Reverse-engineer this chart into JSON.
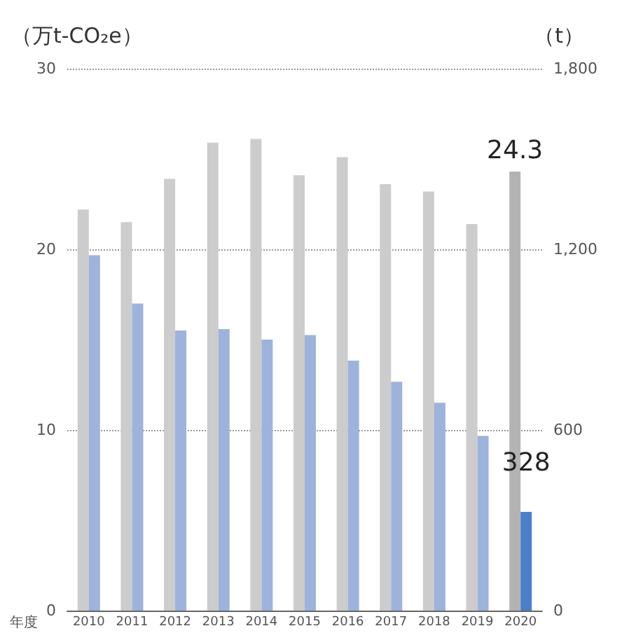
{
  "chart_data": {
    "type": "bar",
    "xlabel": "年度",
    "ylabel": "（万t-CO₂e）",
    "y2label": "（t）",
    "categories": [
      "2010",
      "2011",
      "2012",
      "2013",
      "2014",
      "2015",
      "2016",
      "2017",
      "2018",
      "2019",
      "2020"
    ],
    "series": [
      {
        "colors": [
          "#cccccc",
          "#cccccc",
          "#cccccc",
          "#cccccc",
          "#cccccc",
          "#cccccc",
          "#cccccc",
          "#cccccc",
          "#cccccc",
          "#cccccc",
          "#b3b3b3"
        ],
        "values": [
          22.2,
          21.5,
          23.9,
          25.9,
          26.1,
          24.1,
          25.1,
          23.6,
          23.2,
          21.4,
          24.3
        ],
        "value_labels": [
          null,
          null,
          null,
          null,
          null,
          null,
          null,
          null,
          null,
          null,
          "24.3"
        ]
      },
      {
        "axis": "y2",
        "colors": [
          "#9db3dc",
          "#9db3dc",
          "#9db3dc",
          "#9db3dc",
          "#9db3dc",
          "#9db3dc",
          "#9db3dc",
          "#9db3dc",
          "#9db3dc",
          "#9db3dc",
          "#4a80c8"
        ],
        "values": [
          1180,
          1020,
          930,
          935,
          900,
          915,
          830,
          760,
          690,
          580,
          328
        ],
        "value_labels": [
          null,
          null,
          null,
          null,
          null,
          null,
          null,
          null,
          null,
          null,
          "328"
        ]
      }
    ],
    "ylim": [
      0,
      30
    ],
    "yticks": [
      0,
      10,
      20,
      30
    ],
    "y2lim": [
      0,
      1800
    ],
    "y2ticks": [
      0,
      600,
      {
        "value": 1200,
        "label": "1,200"
      },
      {
        "value": 1800,
        "label": "1,800"
      }
    ],
    "grid": "y"
  }
}
